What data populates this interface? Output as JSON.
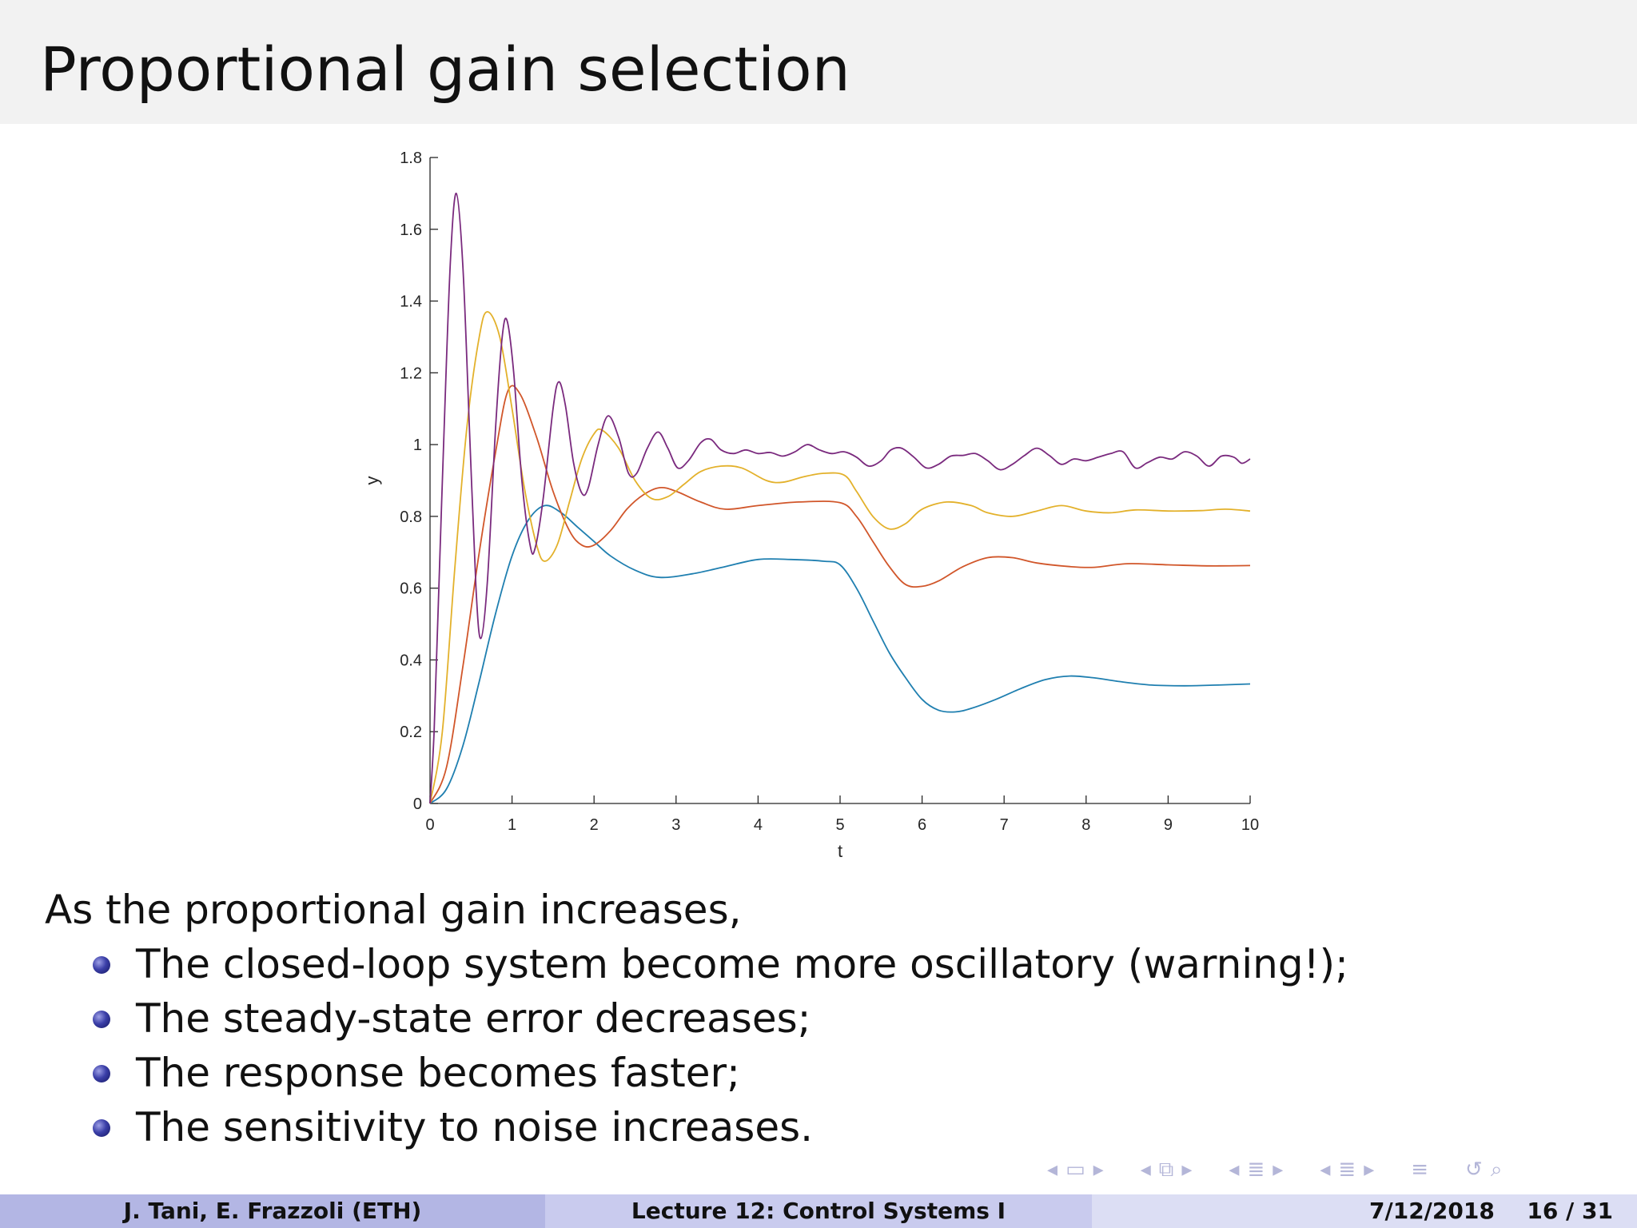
{
  "slide": {
    "title": "Proportional gain selection",
    "intro": "As the proportional gain increases,",
    "bullets": [
      "The closed-loop system become more oscillatory (warning!);",
      "The steady-state error decreases;",
      "The response becomes faster;",
      "The sensitivity to noise increases."
    ]
  },
  "footer": {
    "authors": "J. Tani, E. Frazzoli  (ETH)",
    "lecture": "Lecture 12: Control Systems I",
    "date": "7/12/2018",
    "page": "16 / 31"
  },
  "nav_icons": [
    "nav-left-icon",
    "frame-icon",
    "nav-right-icon",
    "nav-left-icon",
    "slides-icon",
    "nav-right-icon",
    "nav-left-icon",
    "section-icon",
    "nav-right-icon",
    "nav-left-icon",
    "subsection-icon",
    "nav-right-icon",
    "align-icon",
    "undo-icon",
    "search-icon"
  ],
  "chart_data": {
    "type": "line",
    "xlabel": "t",
    "ylabel": "y",
    "xlim": [
      0,
      10
    ],
    "ylim": [
      0,
      1.8
    ],
    "xticks": [
      0,
      1,
      2,
      3,
      4,
      5,
      6,
      7,
      8,
      9,
      10
    ],
    "yticks": [
      0,
      0.2,
      0.4,
      0.6,
      0.8,
      1,
      1.2,
      1.4,
      1.6,
      1.8
    ],
    "ytick_labels": [
      "0",
      "0.2",
      "0.4",
      "0.6",
      "0.8",
      "1",
      "1.2",
      "1.4",
      "1.6",
      "1.8"
    ],
    "grid": false,
    "series": [
      {
        "color": "#1f7fb0",
        "points": [
          [
            0,
            0
          ],
          [
            0.2,
            0.04
          ],
          [
            0.4,
            0.16
          ],
          [
            0.6,
            0.34
          ],
          [
            0.8,
            0.53
          ],
          [
            1.0,
            0.69
          ],
          [
            1.2,
            0.79
          ],
          [
            1.4,
            0.83
          ],
          [
            1.6,
            0.81
          ],
          [
            1.8,
            0.77
          ],
          [
            2.0,
            0.73
          ],
          [
            2.2,
            0.69
          ],
          [
            2.5,
            0.65
          ],
          [
            2.8,
            0.63
          ],
          [
            3.2,
            0.64
          ],
          [
            3.6,
            0.66
          ],
          [
            4.0,
            0.68
          ],
          [
            4.4,
            0.68
          ],
          [
            4.8,
            0.675
          ],
          [
            5.0,
            0.665
          ],
          [
            5.2,
            0.6
          ],
          [
            5.4,
            0.51
          ],
          [
            5.6,
            0.42
          ],
          [
            5.8,
            0.35
          ],
          [
            6.0,
            0.29
          ],
          [
            6.2,
            0.26
          ],
          [
            6.4,
            0.255
          ],
          [
            6.6,
            0.265
          ],
          [
            6.9,
            0.29
          ],
          [
            7.2,
            0.32
          ],
          [
            7.5,
            0.345
          ],
          [
            7.8,
            0.355
          ],
          [
            8.1,
            0.35
          ],
          [
            8.4,
            0.34
          ],
          [
            8.8,
            0.33
          ],
          [
            9.2,
            0.328
          ],
          [
            9.6,
            0.33
          ],
          [
            10,
            0.333
          ]
        ]
      },
      {
        "color": "#d1562a",
        "points": [
          [
            0,
            0
          ],
          [
            0.2,
            0.1
          ],
          [
            0.4,
            0.38
          ],
          [
            0.6,
            0.7
          ],
          [
            0.8,
            0.98
          ],
          [
            0.95,
            1.15
          ],
          [
            1.1,
            1.14
          ],
          [
            1.3,
            1.02
          ],
          [
            1.5,
            0.87
          ],
          [
            1.7,
            0.76
          ],
          [
            1.85,
            0.72
          ],
          [
            2.0,
            0.72
          ],
          [
            2.2,
            0.76
          ],
          [
            2.4,
            0.82
          ],
          [
            2.6,
            0.86
          ],
          [
            2.8,
            0.88
          ],
          [
            3.0,
            0.87
          ],
          [
            3.3,
            0.84
          ],
          [
            3.6,
            0.82
          ],
          [
            4.0,
            0.83
          ],
          [
            4.5,
            0.84
          ],
          [
            5.0,
            0.838
          ],
          [
            5.2,
            0.8
          ],
          [
            5.4,
            0.73
          ],
          [
            5.6,
            0.66
          ],
          [
            5.8,
            0.61
          ],
          [
            6.0,
            0.605
          ],
          [
            6.2,
            0.62
          ],
          [
            6.5,
            0.66
          ],
          [
            6.8,
            0.685
          ],
          [
            7.1,
            0.685
          ],
          [
            7.4,
            0.67
          ],
          [
            7.8,
            0.66
          ],
          [
            8.1,
            0.658
          ],
          [
            8.5,
            0.668
          ],
          [
            9.0,
            0.665
          ],
          [
            9.5,
            0.662
          ],
          [
            10,
            0.663
          ]
        ]
      },
      {
        "color": "#e3b12b",
        "points": [
          [
            0,
            0
          ],
          [
            0.15,
            0.2
          ],
          [
            0.3,
            0.65
          ],
          [
            0.45,
            1.05
          ],
          [
            0.6,
            1.3
          ],
          [
            0.7,
            1.37
          ],
          [
            0.85,
            1.3
          ],
          [
            1.0,
            1.1
          ],
          [
            1.15,
            0.88
          ],
          [
            1.3,
            0.72
          ],
          [
            1.4,
            0.675
          ],
          [
            1.55,
            0.72
          ],
          [
            1.7,
            0.84
          ],
          [
            1.85,
            0.96
          ],
          [
            2.0,
            1.03
          ],
          [
            2.1,
            1.04
          ],
          [
            2.3,
            0.99
          ],
          [
            2.5,
            0.9
          ],
          [
            2.7,
            0.85
          ],
          [
            2.9,
            0.855
          ],
          [
            3.1,
            0.89
          ],
          [
            3.3,
            0.925
          ],
          [
            3.55,
            0.94
          ],
          [
            3.8,
            0.935
          ],
          [
            4.1,
            0.9
          ],
          [
            4.3,
            0.895
          ],
          [
            4.55,
            0.91
          ],
          [
            4.8,
            0.92
          ],
          [
            5.05,
            0.915
          ],
          [
            5.2,
            0.87
          ],
          [
            5.4,
            0.8
          ],
          [
            5.6,
            0.765
          ],
          [
            5.8,
            0.78
          ],
          [
            6.0,
            0.82
          ],
          [
            6.3,
            0.84
          ],
          [
            6.6,
            0.83
          ],
          [
            6.8,
            0.81
          ],
          [
            7.1,
            0.8
          ],
          [
            7.4,
            0.815
          ],
          [
            7.7,
            0.83
          ],
          [
            8.0,
            0.815
          ],
          [
            8.3,
            0.81
          ],
          [
            8.6,
            0.818
          ],
          [
            9.0,
            0.815
          ],
          [
            9.4,
            0.816
          ],
          [
            9.7,
            0.82
          ],
          [
            10,
            0.815
          ]
        ]
      },
      {
        "color": "#7a2a7e",
        "points": [
          [
            0,
            0
          ],
          [
            0.05,
            0.2
          ],
          [
            0.1,
            0.55
          ],
          [
            0.18,
            1.1
          ],
          [
            0.25,
            1.52
          ],
          [
            0.32,
            1.7
          ],
          [
            0.4,
            1.5
          ],
          [
            0.48,
            1.05
          ],
          [
            0.56,
            0.6
          ],
          [
            0.62,
            0.46
          ],
          [
            0.7,
            0.62
          ],
          [
            0.8,
            1.05
          ],
          [
            0.88,
            1.3
          ],
          [
            0.94,
            1.345
          ],
          [
            1.02,
            1.2
          ],
          [
            1.12,
            0.9
          ],
          [
            1.22,
            0.72
          ],
          [
            1.28,
            0.71
          ],
          [
            1.38,
            0.85
          ],
          [
            1.5,
            1.1
          ],
          [
            1.57,
            1.175
          ],
          [
            1.65,
            1.11
          ],
          [
            1.75,
            0.95
          ],
          [
            1.85,
            0.865
          ],
          [
            1.93,
            0.88
          ],
          [
            2.05,
            1.0
          ],
          [
            2.17,
            1.08
          ],
          [
            2.3,
            1.02
          ],
          [
            2.42,
            0.92
          ],
          [
            2.52,
            0.92
          ],
          [
            2.65,
            0.99
          ],
          [
            2.78,
            1.035
          ],
          [
            2.9,
            0.99
          ],
          [
            3.02,
            0.935
          ],
          [
            3.15,
            0.955
          ],
          [
            3.3,
            1.005
          ],
          [
            3.42,
            1.015
          ],
          [
            3.55,
            0.985
          ],
          [
            3.7,
            0.975
          ],
          [
            3.85,
            0.985
          ],
          [
            4.0,
            0.975
          ],
          [
            4.15,
            0.978
          ],
          [
            4.3,
            0.968
          ],
          [
            4.45,
            0.98
          ],
          [
            4.6,
            1.0
          ],
          [
            4.75,
            0.985
          ],
          [
            4.9,
            0.975
          ],
          [
            5.05,
            0.98
          ],
          [
            5.2,
            0.965
          ],
          [
            5.35,
            0.94
          ],
          [
            5.5,
            0.955
          ],
          [
            5.62,
            0.985
          ],
          [
            5.75,
            0.99
          ],
          [
            5.9,
            0.965
          ],
          [
            6.05,
            0.935
          ],
          [
            6.2,
            0.945
          ],
          [
            6.35,
            0.968
          ],
          [
            6.5,
            0.97
          ],
          [
            6.65,
            0.975
          ],
          [
            6.8,
            0.955
          ],
          [
            6.95,
            0.93
          ],
          [
            7.1,
            0.945
          ],
          [
            7.25,
            0.97
          ],
          [
            7.4,
            0.99
          ],
          [
            7.55,
            0.97
          ],
          [
            7.7,
            0.945
          ],
          [
            7.85,
            0.96
          ],
          [
            8.0,
            0.955
          ],
          [
            8.15,
            0.965
          ],
          [
            8.3,
            0.975
          ],
          [
            8.45,
            0.98
          ],
          [
            8.6,
            0.935
          ],
          [
            8.75,
            0.95
          ],
          [
            8.9,
            0.965
          ],
          [
            9.05,
            0.96
          ],
          [
            9.2,
            0.98
          ],
          [
            9.35,
            0.968
          ],
          [
            9.5,
            0.94
          ],
          [
            9.65,
            0.968
          ],
          [
            9.8,
            0.965
          ],
          [
            9.9,
            0.948
          ],
          [
            10,
            0.96
          ]
        ]
      }
    ]
  }
}
